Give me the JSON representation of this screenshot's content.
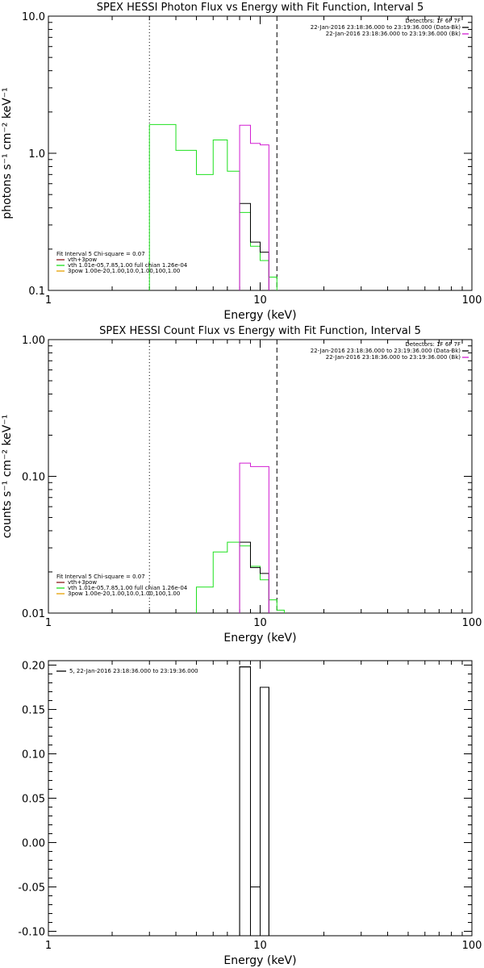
{
  "colors": {
    "black": "#000000",
    "green": "#1ee01e",
    "magenta": "#d21ed2",
    "orange": "#e6a000",
    "dark_red": "#8b1a1a"
  },
  "chart_data": [
    {
      "type": "line",
      "step": true,
      "title": "SPEX HESSI Photon Flux vs Energy with Fit Function, Interval 5",
      "xlabel": "Energy (keV)",
      "ylabel": "photons s⁻¹ cm⁻² keV⁻¹",
      "xscale": "log",
      "yscale": "log",
      "xlim": [
        1,
        100
      ],
      "ylim": [
        0.1,
        10
      ],
      "xticks": [
        {
          "v": 1,
          "label": "1"
        },
        {
          "v": 10,
          "label": "10"
        },
        {
          "v": 100,
          "label": "100"
        }
      ],
      "yticks": [
        {
          "v": 0.1,
          "label": "0.1"
        },
        {
          "v": 1,
          "label": "1.0"
        },
        {
          "v": 10,
          "label": "10.0"
        }
      ],
      "vlines": [
        {
          "x": 3.0,
          "style": "dotted"
        },
        {
          "x": 12.0,
          "style": "dashed"
        }
      ],
      "legend_top": [
        {
          "text": "Detectors: 1F 6F 7F",
          "color": ""
        },
        {
          "text": "22-Jan-2016 23:18:36.000 to 23:19:36.000 (Data-Bk)",
          "color": "#000000"
        },
        {
          "text": "22-Jan-2016 23:18:36.000 to 23:19:36.000 (Bk)",
          "color": "#d21ed2"
        }
      ],
      "legend_bottom": [
        {
          "text": "Fit Interval 5   Chi-square = 0.07",
          "color": ""
        },
        {
          "text": "vth+3pow",
          "color": "#8b1a1a"
        },
        {
          "text": "vth 1.01e-05,7.85,1.00  full chian 1.26e-04",
          "color": "#1ee01e"
        },
        {
          "text": "3pow 1.00e-20,1.00,10.0,1.00,100,1.00",
          "color": "#e6a000"
        }
      ],
      "series": [
        {
          "color": "#1ee01e",
          "edges": [
            3.0,
            4.0,
            5.0,
            6.0,
            7.0,
            8.0,
            9.0,
            10.0,
            11.0,
            12.0
          ],
          "values": [
            1.62,
            1.05,
            0.7,
            1.25,
            0.74,
            0.37,
            0.21,
            0.165,
            0.125
          ]
        },
        {
          "color": "#000000",
          "edges": [
            8.0,
            9.0,
            10.0,
            11.0
          ],
          "values": [
            0.43,
            0.225,
            0.19
          ]
        },
        {
          "color": "#d21ed2",
          "edges": [
            8.0,
            9.0,
            10.0,
            11.0
          ],
          "values": [
            1.6,
            1.18,
            1.15
          ]
        }
      ]
    },
    {
      "type": "line",
      "step": true,
      "title": "SPEX HESSI Count Flux vs Energy with Fit Function, Interval 5",
      "xlabel": "Energy (keV)",
      "ylabel": "counts s⁻¹ cm⁻² keV⁻¹",
      "xscale": "log",
      "yscale": "log",
      "xlim": [
        1,
        100
      ],
      "ylim": [
        0.01,
        1
      ],
      "xticks": [
        {
          "v": 1,
          "label": "1"
        },
        {
          "v": 10,
          "label": "10"
        },
        {
          "v": 100,
          "label": "100"
        }
      ],
      "yticks": [
        {
          "v": 0.01,
          "label": "0.01"
        },
        {
          "v": 0.1,
          "label": "0.10"
        },
        {
          "v": 1,
          "label": "1.00"
        }
      ],
      "vlines": [
        {
          "x": 3.0,
          "style": "dotted"
        },
        {
          "x": 12.0,
          "style": "dashed"
        }
      ],
      "legend_top": [
        {
          "text": "Detectors: 1F 6F 7F",
          "color": ""
        },
        {
          "text": "22-Jan-2016 23:18:36.000 to 23:19:36.000 (Data-Bk)",
          "color": "#000000"
        },
        {
          "text": "22-Jan-2016 23:18:36.000 to 23:19:36.000 (Bk)",
          "color": "#d21ed2"
        }
      ],
      "legend_bottom": [
        {
          "text": "Fit Interval 5   Chi-square = 0.07",
          "color": ""
        },
        {
          "text": "vth+3pow",
          "color": "#8b1a1a"
        },
        {
          "text": "vth 1.01e-05,7.85,1.00  full chian 1.26e-04",
          "color": "#1ee01e"
        },
        {
          "text": "3pow 1.00e-20,1.00,10.0,1.00,100,1.00",
          "color": "#e6a000"
        }
      ],
      "series": [
        {
          "color": "#1ee01e",
          "edges": [
            5.0,
            6.0,
            7.0,
            8.0,
            9.0,
            10.0,
            11.0,
            12.0,
            13.0
          ],
          "values": [
            0.0155,
            0.028,
            0.033,
            0.031,
            0.022,
            0.0175,
            0.0125,
            0.0105
          ]
        },
        {
          "color": "#000000",
          "edges": [
            8.0,
            9.0,
            10.0,
            11.0
          ],
          "values": [
            0.033,
            0.0215,
            0.0195
          ]
        },
        {
          "color": "#d21ed2",
          "edges": [
            8.0,
            9.0,
            10.0,
            11.0
          ],
          "values": [
            0.125,
            0.118,
            0.118
          ]
        }
      ]
    },
    {
      "type": "bar",
      "step": true,
      "title": "",
      "xlabel": "Energy (keV)",
      "ylabel": "",
      "xscale": "log",
      "yscale": "linear",
      "xlim": [
        1,
        100
      ],
      "ylim": [
        -0.105,
        0.205
      ],
      "xticks": [
        {
          "v": 1,
          "label": "1"
        },
        {
          "v": 10,
          "label": "10"
        },
        {
          "v": 100,
          "label": "100"
        }
      ],
      "yticks": [
        {
          "v": -0.1,
          "label": "-0.10"
        },
        {
          "v": -0.05,
          "label": "-0.05"
        },
        {
          "v": 0.0,
          "label": "0.00"
        },
        {
          "v": 0.05,
          "label": "0.05"
        },
        {
          "v": 0.1,
          "label": "0.10"
        },
        {
          "v": 0.15,
          "label": "0.15"
        },
        {
          "v": 0.2,
          "label": "0.20"
        }
      ],
      "legend_top": [
        {
          "text": "5, 22-Jan-2016 23:18:36.000 to 23:19:36.000",
          "color": "#000000"
        }
      ],
      "series": [
        {
          "color": "#000000",
          "edges": [
            8.0,
            9.0,
            10.0,
            11.0
          ],
          "values": [
            0.198,
            -0.05,
            0.175
          ]
        }
      ]
    }
  ]
}
